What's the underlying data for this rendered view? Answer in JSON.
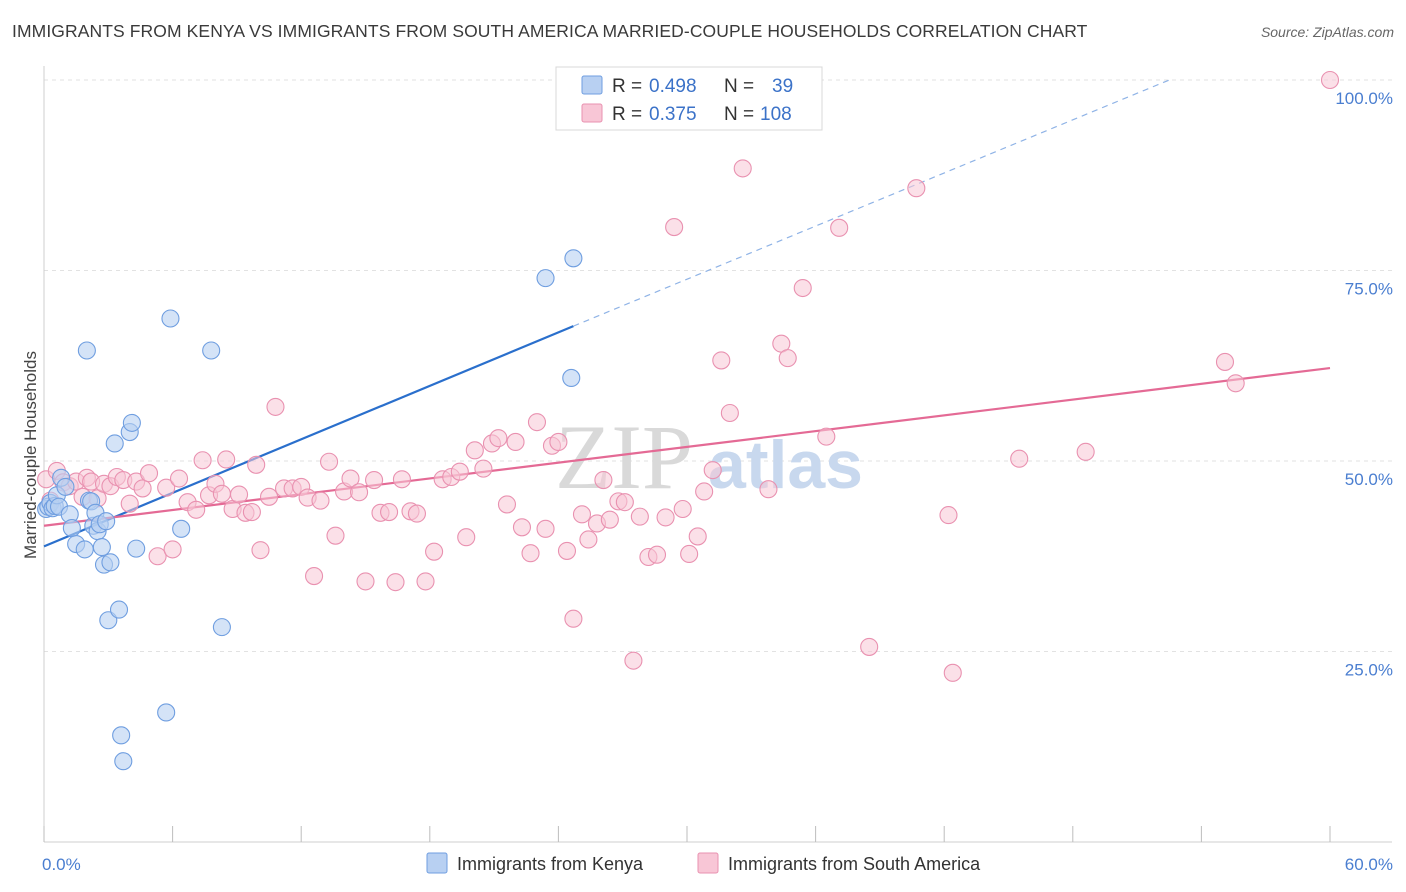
{
  "header": {
    "title": "IMMIGRANTS FROM KENYA VS IMMIGRANTS FROM SOUTH AMERICA MARRIED-COUPLE HOUSEHOLDS CORRELATION CHART",
    "source": "Source: ZipAtlas.com"
  },
  "watermark": {
    "part1": "ZIP",
    "part2": "atlas"
  },
  "colors": {
    "kenya_fill": "#b8d0f2",
    "kenya_stroke": "#6f9ee0",
    "kenya_line": "#2a6fcc",
    "sa_fill": "#f8c6d6",
    "sa_stroke": "#e991b0",
    "sa_line": "#e46a95",
    "grid": "#e2e2e2",
    "tick_text": "#4a7ed0"
  },
  "legend": {
    "rows": [
      {
        "r_label": "R =",
        "r_value": "0.498",
        "n_label": "N =",
        "n_value": "39"
      },
      {
        "r_label": "R =",
        "r_value": "0.375",
        "n_label": "N =",
        "n_value": "108"
      }
    ]
  },
  "chart_data": {
    "type": "scatter",
    "title": "IMMIGRANTS FROM KENYA VS IMMIGRANTS FROM SOUTH AMERICA MARRIED-COUPLE HOUSEHOLDS CORRELATION CHART",
    "xlabel": "",
    "ylabel": "Married-couple Households",
    "xlim": [
      0,
      60
    ],
    "ylim": [
      0,
      102
    ],
    "x_tick_labels": [
      {
        "value": 0,
        "label": "0.0%"
      },
      {
        "value": 60,
        "label": "60.0%"
      }
    ],
    "y_tick_labels": [
      {
        "value": 25,
        "label": "25.0%"
      },
      {
        "value": 50,
        "label": "50.0%"
      },
      {
        "value": 75,
        "label": "75.0%"
      },
      {
        "value": 100,
        "label": "100.0%"
      }
    ],
    "x_minor_ticks": [
      0,
      6,
      12,
      18,
      24,
      30,
      36,
      42,
      48,
      54,
      60
    ],
    "series": [
      {
        "name": "Immigrants from Kenya",
        "r": 0.498,
        "n": 39,
        "trend": {
          "x": [
            0,
            24.7
          ],
          "y": [
            38.8,
            67.7
          ]
        },
        "trend_extension": {
          "x": [
            24.7,
            52.5
          ],
          "y": [
            67.7,
            100
          ]
        },
        "points": [
          [
            0.1,
            43.7
          ],
          [
            0.2,
            44.0
          ],
          [
            0.3,
            44.5
          ],
          [
            0.4,
            43.8
          ],
          [
            0.5,
            44.1
          ],
          [
            0.6,
            45.5
          ],
          [
            0.7,
            44.0
          ],
          [
            0.8,
            47.8
          ],
          [
            1.0,
            46.6
          ],
          [
            1.2,
            43.0
          ],
          [
            1.3,
            41.2
          ],
          [
            1.5,
            39.1
          ],
          [
            1.9,
            38.4
          ],
          [
            2.0,
            64.5
          ],
          [
            2.1,
            44.8
          ],
          [
            2.2,
            44.7
          ],
          [
            2.3,
            41.5
          ],
          [
            2.4,
            43.2
          ],
          [
            2.5,
            40.8
          ],
          [
            2.6,
            41.7
          ],
          [
            2.7,
            38.7
          ],
          [
            2.8,
            36.4
          ],
          [
            2.9,
            42.1
          ],
          [
            3.0,
            29.1
          ],
          [
            3.1,
            36.7
          ],
          [
            3.3,
            52.3
          ],
          [
            3.5,
            30.5
          ],
          [
            3.6,
            14.0
          ],
          [
            3.7,
            10.6
          ],
          [
            4.0,
            53.8
          ],
          [
            4.1,
            55.0
          ],
          [
            4.3,
            38.5
          ],
          [
            5.7,
            17.0
          ],
          [
            5.9,
            68.7
          ],
          [
            6.4,
            41.1
          ],
          [
            7.8,
            64.5
          ],
          [
            8.3,
            28.2
          ],
          [
            23.4,
            74.0
          ],
          [
            24.6,
            60.9
          ],
          [
            24.7,
            76.6
          ]
        ]
      },
      {
        "name": "Immigrants from South America",
        "r": 0.375,
        "n": 108,
        "trend": {
          "x": [
            0,
            60
          ],
          "y": [
            41.5,
            62.2
          ]
        },
        "points": [
          [
            0.1,
            47.6
          ],
          [
            0.3,
            44.8
          ],
          [
            0.6,
            48.7
          ],
          [
            0.9,
            47.2
          ],
          [
            1.2,
            46.7
          ],
          [
            1.5,
            47.3
          ],
          [
            1.8,
            45.3
          ],
          [
            2.0,
            47.8
          ],
          [
            2.2,
            47.3
          ],
          [
            2.5,
            45.1
          ],
          [
            2.8,
            47.0
          ],
          [
            3.1,
            46.7
          ],
          [
            3.4,
            47.9
          ],
          [
            3.7,
            47.5
          ],
          [
            4.0,
            44.4
          ],
          [
            4.3,
            47.3
          ],
          [
            4.6,
            46.4
          ],
          [
            4.9,
            48.4
          ],
          [
            5.3,
            37.5
          ],
          [
            5.7,
            46.5
          ],
          [
            6.0,
            38.4
          ],
          [
            6.3,
            47.7
          ],
          [
            6.7,
            44.6
          ],
          [
            7.1,
            43.6
          ],
          [
            7.4,
            50.1
          ],
          [
            7.7,
            45.5
          ],
          [
            8.0,
            47.0
          ],
          [
            8.3,
            45.7
          ],
          [
            8.5,
            50.2
          ],
          [
            8.8,
            43.7
          ],
          [
            9.1,
            45.6
          ],
          [
            9.4,
            43.2
          ],
          [
            9.7,
            43.3
          ],
          [
            9.9,
            49.5
          ],
          [
            10.1,
            38.3
          ],
          [
            10.5,
            45.3
          ],
          [
            10.8,
            57.1
          ],
          [
            11.2,
            46.4
          ],
          [
            11.6,
            46.4
          ],
          [
            12.0,
            46.6
          ],
          [
            12.3,
            45.2
          ],
          [
            12.6,
            34.9
          ],
          [
            12.9,
            44.8
          ],
          [
            13.3,
            49.9
          ],
          [
            13.6,
            40.2
          ],
          [
            14.0,
            46.0
          ],
          [
            14.3,
            47.7
          ],
          [
            14.7,
            45.9
          ],
          [
            15.0,
            34.2
          ],
          [
            15.4,
            47.5
          ],
          [
            15.7,
            43.2
          ],
          [
            16.1,
            43.3
          ],
          [
            16.4,
            34.1
          ],
          [
            16.7,
            47.6
          ],
          [
            17.1,
            43.4
          ],
          [
            17.4,
            43.1
          ],
          [
            17.8,
            34.2
          ],
          [
            18.2,
            38.1
          ],
          [
            18.6,
            47.6
          ],
          [
            19.0,
            47.9
          ],
          [
            19.4,
            48.6
          ],
          [
            19.7,
            40.0
          ],
          [
            20.1,
            51.4
          ],
          [
            20.5,
            49.0
          ],
          [
            20.9,
            52.3
          ],
          [
            21.2,
            53.0
          ],
          [
            21.6,
            44.3
          ],
          [
            22.0,
            52.5
          ],
          [
            22.3,
            41.3
          ],
          [
            22.7,
            37.9
          ],
          [
            23.0,
            55.1
          ],
          [
            23.4,
            41.1
          ],
          [
            23.7,
            52.0
          ],
          [
            24.0,
            52.5
          ],
          [
            24.4,
            38.2
          ],
          [
            24.7,
            29.3
          ],
          [
            25.1,
            43.0
          ],
          [
            25.4,
            39.7
          ],
          [
            25.8,
            41.8
          ],
          [
            26.1,
            47.5
          ],
          [
            26.4,
            42.3
          ],
          [
            26.8,
            44.7
          ],
          [
            27.1,
            44.6
          ],
          [
            27.5,
            23.8
          ],
          [
            27.8,
            42.7
          ],
          [
            28.2,
            37.4
          ],
          [
            28.6,
            37.7
          ],
          [
            29.0,
            42.6
          ],
          [
            29.4,
            80.7
          ],
          [
            29.8,
            43.7
          ],
          [
            30.1,
            37.8
          ],
          [
            30.5,
            40.1
          ],
          [
            30.8,
            46.0
          ],
          [
            31.2,
            48.8
          ],
          [
            31.6,
            63.2
          ],
          [
            32.0,
            56.3
          ],
          [
            32.6,
            88.4
          ],
          [
            33.8,
            46.3
          ],
          [
            34.4,
            65.4
          ],
          [
            34.7,
            63.5
          ],
          [
            35.4,
            72.7
          ],
          [
            36.5,
            53.2
          ],
          [
            37.1,
            80.6
          ],
          [
            38.5,
            25.6
          ],
          [
            40.7,
            85.8
          ],
          [
            42.2,
            42.9
          ],
          [
            42.4,
            22.2
          ],
          [
            45.5,
            50.3
          ],
          [
            48.6,
            51.2
          ],
          [
            55.1,
            63.0
          ],
          [
            55.6,
            60.2
          ],
          [
            60.0,
            100.0
          ]
        ]
      }
    ],
    "bottom_legend": [
      "Immigrants from Kenya",
      "Immigrants from South America"
    ]
  }
}
